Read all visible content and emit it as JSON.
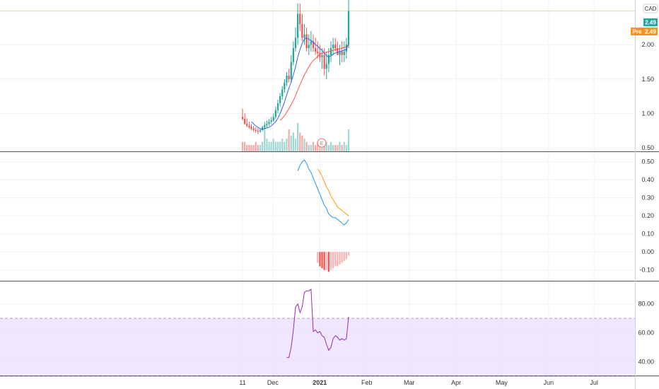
{
  "header": {
    "currency": "CAD"
  },
  "price_tags": {
    "last": "2.49",
    "pre_label": "Pre",
    "pre_value": "2.49",
    "last_color": "#26a69a",
    "pre_color": "#f7941d"
  },
  "colors": {
    "up": "#26a69a",
    "down": "#ef5350",
    "ma": "#2962ff",
    "ma_slow": "#ff5252",
    "macd": "#2196f3",
    "signal": "#ff9800",
    "rsi": "#9c27b0",
    "rsi_band": "#e9ddff"
  },
  "x_axis": {
    "labels": [
      "11",
      "Dec",
      "2021",
      "Feb",
      "Mar",
      "Apr",
      "May",
      "Jun",
      "Jul"
    ]
  },
  "earnings_marker": "E",
  "chart_data": [
    {
      "type": "candlestick",
      "panel": "price",
      "y_ticks": [
        "2.49",
        "2.00",
        "1.50",
        "1.00",
        "0.50"
      ],
      "ylim": [
        0.45,
        2.65
      ],
      "x": [
        "2020-11-11",
        "2020-11-12",
        "2020-11-13",
        "2020-11-16",
        "2020-11-17",
        "2020-11-18",
        "2020-11-19",
        "2020-11-20",
        "2020-11-23",
        "2020-11-24",
        "2020-11-25",
        "2020-11-26",
        "2020-11-27",
        "2020-11-30",
        "2020-12-01",
        "2020-12-02",
        "2020-12-03",
        "2020-12-04",
        "2020-12-07",
        "2020-12-08",
        "2020-12-09",
        "2020-12-10",
        "2020-12-11",
        "2020-12-14",
        "2020-12-15",
        "2020-12-16",
        "2020-12-17",
        "2020-12-18",
        "2020-12-21",
        "2020-12-22",
        "2020-12-23",
        "2020-12-24",
        "2020-12-28",
        "2020-12-29",
        "2020-12-30",
        "2020-12-31",
        "2021-01-04",
        "2021-01-05",
        "2021-01-06",
        "2021-01-07",
        "2021-01-08",
        "2021-01-11",
        "2021-01-12",
        "2021-01-13",
        "2021-01-14",
        "2021-01-15",
        "2021-01-18",
        "2021-01-19",
        "2021-01-20"
      ],
      "open": [
        0.95,
        0.92,
        0.85,
        0.82,
        0.8,
        0.78,
        0.76,
        0.75,
        0.74,
        0.76,
        0.8,
        0.83,
        0.85,
        0.88,
        0.9,
        0.95,
        1.05,
        1.15,
        1.25,
        1.35,
        1.45,
        1.55,
        1.5,
        1.75,
        1.95,
        2.1,
        2.45,
        2.3,
        2.1,
        2.15,
        1.95,
        2.0,
        2.05,
        1.95,
        1.9,
        1.88,
        1.82,
        1.85,
        1.65,
        1.72,
        1.85,
        1.95,
        2.0,
        1.95,
        1.85,
        1.9,
        1.85,
        1.9,
        2.0
      ],
      "high": [
        1.07,
        1.0,
        0.93,
        0.88,
        0.85,
        0.82,
        0.8,
        0.79,
        0.78,
        0.82,
        0.88,
        0.9,
        0.92,
        0.95,
        1.0,
        1.1,
        1.2,
        1.3,
        1.4,
        1.5,
        1.6,
        1.65,
        1.85,
        2.05,
        2.25,
        2.6,
        2.6,
        2.45,
        2.3,
        2.25,
        2.15,
        2.2,
        2.15,
        2.1,
        2.05,
        2.0,
        1.95,
        1.95,
        1.9,
        1.95,
        2.05,
        2.1,
        2.1,
        2.05,
        2.0,
        2.05,
        2.05,
        2.1,
        2.65
      ],
      "low": [
        0.9,
        0.84,
        0.8,
        0.78,
        0.76,
        0.74,
        0.72,
        0.7,
        0.72,
        0.74,
        0.78,
        0.8,
        0.82,
        0.85,
        0.88,
        0.92,
        1.0,
        1.1,
        1.2,
        1.3,
        1.4,
        1.45,
        1.45,
        1.7,
        1.9,
        2.0,
        2.2,
        2.05,
        2.0,
        1.9,
        1.85,
        1.9,
        1.9,
        1.85,
        1.8,
        1.75,
        1.65,
        1.55,
        1.5,
        1.6,
        1.75,
        1.85,
        1.9,
        1.85,
        1.7,
        1.75,
        1.75,
        1.8,
        1.95
      ],
      "close": [
        0.92,
        0.85,
        0.82,
        0.8,
        0.78,
        0.76,
        0.75,
        0.74,
        0.76,
        0.8,
        0.83,
        0.85,
        0.88,
        0.9,
        0.95,
        1.05,
        1.15,
        1.25,
        1.35,
        1.45,
        1.55,
        1.5,
        1.75,
        1.95,
        2.1,
        2.45,
        2.3,
        2.1,
        2.15,
        1.95,
        2.0,
        2.05,
        1.95,
        1.9,
        1.88,
        1.82,
        1.85,
        1.65,
        1.72,
        1.85,
        1.95,
        2.0,
        1.95,
        1.85,
        1.9,
        1.85,
        1.9,
        2.0,
        2.49
      ],
      "volume": [
        3,
        3,
        2,
        2,
        2,
        2,
        3,
        2,
        2,
        3,
        8,
        4,
        3,
        3,
        4,
        3,
        3,
        3,
        4,
        3,
        4,
        7,
        5,
        6,
        4,
        9,
        6,
        5,
        4,
        3,
        2,
        2,
        3,
        2,
        3,
        3,
        2,
        2,
        3,
        2,
        3,
        2,
        2,
        2,
        3,
        2,
        3,
        2,
        7
      ],
      "ma_fast": [
        null,
        null,
        null,
        null,
        0.88,
        0.85,
        0.82,
        0.8,
        0.78,
        0.77,
        0.78,
        0.79,
        0.8,
        0.82,
        0.85,
        0.88,
        0.93,
        1.0,
        1.08,
        1.17,
        1.27,
        1.37,
        1.46,
        1.56,
        1.68,
        1.82,
        1.93,
        2.02,
        2.08,
        2.1,
        2.08,
        2.06,
        2.04,
        2.0,
        1.98,
        1.94,
        1.92,
        1.88,
        1.84,
        1.82,
        1.84,
        1.86,
        1.88,
        1.89,
        1.9,
        1.91,
        1.92,
        1.93,
        2.02
      ],
      "ma_slow": [
        null,
        null,
        null,
        null,
        null,
        null,
        null,
        null,
        null,
        null,
        null,
        null,
        null,
        null,
        null,
        null,
        null,
        0.9,
        0.93,
        0.97,
        1.02,
        1.07,
        1.13,
        1.19,
        1.26,
        1.34,
        1.42,
        1.49,
        1.56,
        1.62,
        1.68,
        1.73,
        1.77,
        1.8,
        1.83,
        1.86,
        1.88,
        1.88,
        1.89,
        1.9,
        1.91,
        1.92,
        1.93,
        1.94,
        1.94,
        1.95,
        1.96,
        1.97,
        2.01
      ]
    },
    {
      "type": "line",
      "panel": "macd",
      "y_ticks": [
        "0.50",
        "0.40",
        "0.30",
        "0.20",
        "0.10",
        "0.00",
        "-0.10"
      ],
      "ylim": [
        -0.16,
        0.55
      ],
      "series": [
        {
          "values": [
            null,
            null,
            null,
            null,
            null,
            null,
            null,
            null,
            null,
            null,
            null,
            null,
            null,
            null,
            null,
            null,
            null,
            null,
            null,
            null,
            null,
            null,
            null,
            null,
            null,
            0.45,
            0.48,
            0.5,
            0.51,
            0.49,
            0.46,
            0.44,
            0.41,
            0.38,
            0.35,
            0.32,
            0.29,
            0.26,
            0.24,
            0.21,
            0.2,
            0.19,
            0.19,
            0.18,
            0.17,
            0.16,
            0.15,
            0.16,
            0.18
          ]
        },
        {
          "values": [
            null,
            null,
            null,
            null,
            null,
            null,
            null,
            null,
            null,
            null,
            null,
            null,
            null,
            null,
            null,
            null,
            null,
            null,
            null,
            null,
            null,
            null,
            null,
            null,
            null,
            null,
            null,
            null,
            null,
            null,
            null,
            null,
            null,
            null,
            0.46,
            0.44,
            0.42,
            0.39,
            0.36,
            0.34,
            0.31,
            0.29,
            0.27,
            0.25,
            0.24,
            0.23,
            0.22,
            0.21,
            0.2
          ]
        }
      ],
      "histogram": [
        null,
        null,
        null,
        null,
        null,
        null,
        null,
        null,
        null,
        null,
        null,
        null,
        null,
        null,
        null,
        null,
        null,
        null,
        null,
        null,
        null,
        null,
        null,
        null,
        null,
        null,
        null,
        null,
        null,
        null,
        null,
        null,
        null,
        null,
        -0.06,
        -0.08,
        -0.09,
        -0.1,
        -0.1,
        -0.11,
        -0.1,
        -0.09,
        -0.08,
        -0.08,
        -0.07,
        -0.06,
        -0.05,
        -0.04,
        -0.02
      ]
    },
    {
      "type": "line",
      "panel": "rsi",
      "y_ticks": [
        "80.00",
        "60.00",
        "40.00"
      ],
      "ylim": [
        30,
        95
      ],
      "band": [
        30,
        70
      ],
      "series": [
        {
          "values": [
            null,
            null,
            null,
            null,
            null,
            null,
            null,
            null,
            null,
            null,
            null,
            null,
            null,
            null,
            null,
            null,
            null,
            null,
            null,
            null,
            43,
            43,
            50,
            62,
            78,
            80,
            74,
            78,
            88,
            89,
            89,
            90,
            61,
            62,
            60,
            61,
            58,
            57,
            52,
            48,
            50,
            56,
            58,
            57,
            55,
            56,
            55,
            56,
            71
          ]
        }
      ]
    }
  ]
}
